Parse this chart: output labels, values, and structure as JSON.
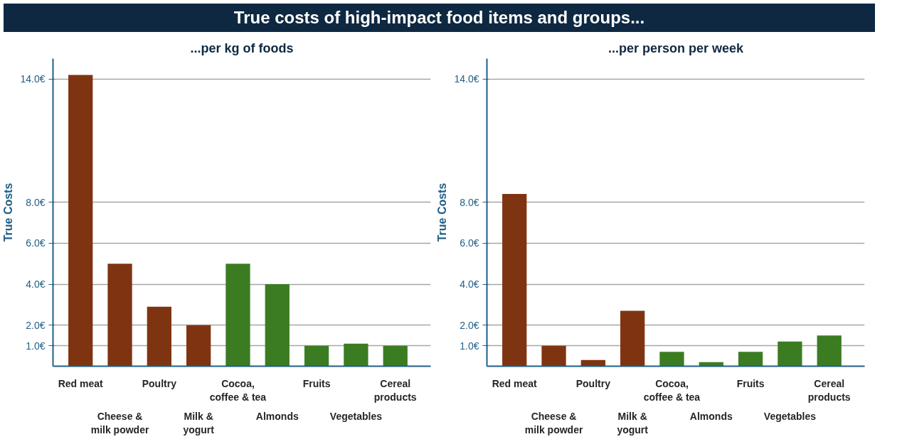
{
  "chart_data": [
    {
      "type": "bar",
      "title": "True costs of high-impact food items and groups...",
      "subtitle": "...per kg of foods",
      "ylabel": "True Costs",
      "categories": [
        "Red meat",
        "Cheese & milk powder",
        "Poultry",
        "Milk & yogurt",
        "Cocoa, coffee & tea",
        "Almonds",
        "Fruits",
        "Vegetables",
        "Cereal products"
      ],
      "values": [
        14.2,
        5.0,
        2.9,
        2.0,
        5.0,
        4.0,
        1.0,
        1.1,
        1.0
      ],
      "colors": [
        "#7f3411",
        "#7f3411",
        "#7f3411",
        "#7f3411",
        "#3b7c23",
        "#3b7c23",
        "#3b7c23",
        "#3b7c23",
        "#3b7c23"
      ],
      "ylim": [
        0,
        15
      ],
      "yticks": [
        {
          "value": 1,
          "label": "1.0€"
        },
        {
          "value": 2,
          "label": "2.0€"
        },
        {
          "value": 4,
          "label": "4.0€"
        },
        {
          "value": 6,
          "label": "6.0€"
        },
        {
          "value": 8,
          "label": "8.0€"
        },
        {
          "value": 14,
          "label": "14.0€"
        }
      ],
      "grid": "y"
    },
    {
      "type": "bar",
      "subtitle": "...per person per week",
      "ylabel": "True Costs",
      "categories": [
        "Red meat",
        "Cheese & milk powder",
        "Poultry",
        "Milk & yogurt",
        "Cocoa, coffee & tea",
        "Almonds",
        "Fruits",
        "Vegetables",
        "Cereal products"
      ],
      "values": [
        8.4,
        1.0,
        0.3,
        2.7,
        0.7,
        0.2,
        0.7,
        1.2,
        1.5
      ],
      "colors": [
        "#7f3411",
        "#7f3411",
        "#7f3411",
        "#7f3411",
        "#3b7c23",
        "#3b7c23",
        "#3b7c23",
        "#3b7c23",
        "#3b7c23"
      ],
      "ylim": [
        0,
        15
      ],
      "yticks": [
        {
          "value": 1,
          "label": "1.0€"
        },
        {
          "value": 2,
          "label": "2.0€"
        },
        {
          "value": 4,
          "label": "4.0€"
        },
        {
          "value": 6,
          "label": "6.0€"
        },
        {
          "value": 8,
          "label": "8.0€"
        },
        {
          "value": 14,
          "label": "14.0€"
        }
      ],
      "grid": "y"
    }
  ]
}
